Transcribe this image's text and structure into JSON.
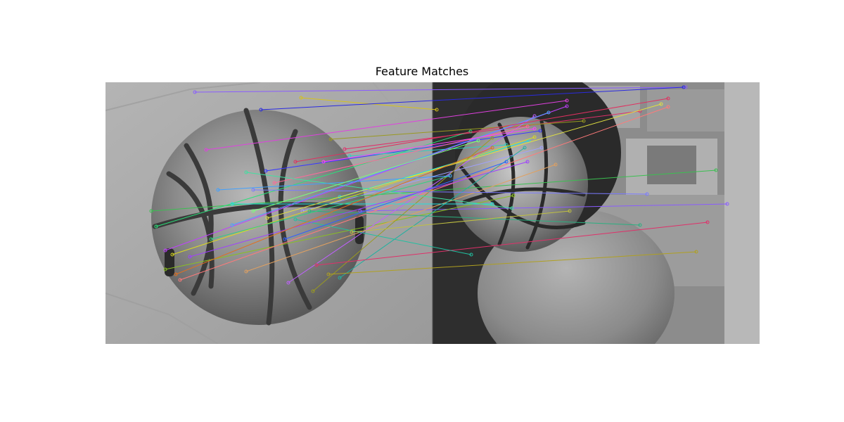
{
  "figure": {
    "title": "Feature Matches"
  },
  "images": {
    "left": {
      "subject": "basketball-on-pavement",
      "tone": "grayscale"
    },
    "right": {
      "subject": "basketball-on-stone-ball",
      "tone": "grayscale"
    }
  },
  "colors": {
    "background": "#ffffff",
    "title": "#000000"
  },
  "matches": [
    {
      "a": [
        277,
        131
      ],
      "b": [
        975,
        124
      ],
      "color": "#8a5cff"
    },
    {
      "a": [
        428,
        139
      ],
      "b": [
        621,
        156
      ],
      "color": "#d6c21a"
    },
    {
      "a": [
        371,
        156
      ],
      "b": [
        972,
        124
      ],
      "color": "#2a2ae0"
    },
    {
      "a": [
        293,
        213
      ],
      "b": [
        806,
        143
      ],
      "color": "#e040e0"
    },
    {
      "a": [
        378,
        243
      ],
      "b": [
        768,
        186
      ],
      "color": "#3a3aff"
    },
    {
      "a": [
        490,
        212
      ],
      "b": [
        910,
        158
      ],
      "color": "#e0306a"
    },
    {
      "a": [
        470,
        198
      ],
      "b": [
        830,
        172
      ],
      "color": "#9a9a20"
    },
    {
      "a": [
        497,
        222
      ],
      "b": [
        720,
        206
      ],
      "color": "#2ad0c0"
    },
    {
      "a": [
        483,
        280
      ],
      "b": [
        752,
        200
      ],
      "color": "#20e0e0"
    },
    {
      "a": [
        512,
        300
      ],
      "b": [
        1034,
        290
      ],
      "color": "#8a5cff"
    },
    {
      "a": [
        430,
        300
      ],
      "b": [
        770,
        210
      ],
      "color": "#a0a0ff"
    },
    {
      "a": [
        215,
        300
      ],
      "b": [
        1018,
        242
      ],
      "color": "#3ac050"
    },
    {
      "a": [
        222,
        322
      ],
      "b": [
        669,
        187
      ],
      "color": "#2ae07a"
    },
    {
      "a": [
        245,
        362
      ],
      "b": [
        760,
        195
      ],
      "color": "#dada20"
    },
    {
      "a": [
        235,
        356
      ],
      "b": [
        806,
        151
      ],
      "color": "#c040ff"
    },
    {
      "a": [
        235,
        383
      ],
      "b": [
        730,
        278
      ],
      "color": "#8ac020"
    },
    {
      "a": [
        256,
        398
      ],
      "b": [
        950,
        152
      ],
      "color": "#ff7a7a"
    },
    {
      "a": [
        350,
        386
      ],
      "b": [
        790,
        234
      ],
      "color": "#e0a060"
    },
    {
      "a": [
        410,
        402
      ],
      "b": [
        760,
        165
      ],
      "color": "#c060ff"
    },
    {
      "a": [
        445,
        414
      ],
      "b": [
        700,
        196
      ],
      "color": "#9a9a20"
    },
    {
      "a": [
        483,
        395
      ],
      "b": [
        746,
        210
      ],
      "color": "#20b0a0"
    },
    {
      "a": [
        467,
        390
      ],
      "b": [
        990,
        358
      ],
      "color": "#b0a020"
    },
    {
      "a": [
        450,
        377
      ],
      "b": [
        1006,
        316
      ],
      "color": "#e0306a"
    },
    {
      "a": [
        440,
        300
      ],
      "b": [
        910,
        320
      ],
      "color": "#2ab080"
    },
    {
      "a": [
        420,
        312
      ],
      "b": [
        670,
        362
      ],
      "color": "#20c0a0"
    },
    {
      "a": [
        360,
        270
      ],
      "b": [
        920,
        276
      ],
      "color": "#7a7aff"
    },
    {
      "a": [
        330,
        290
      ],
      "b": [
        700,
        290
      ],
      "color": "#20e0e0"
    },
    {
      "a": [
        390,
        260
      ],
      "b": [
        750,
        180
      ],
      "color": "#ff6a9a"
    },
    {
      "a": [
        300,
        340
      ],
      "b": [
        640,
        250
      ],
      "color": "#30d080"
    },
    {
      "a": [
        380,
        310
      ],
      "b": [
        940,
        148
      ],
      "color": "#e0e040"
    },
    {
      "a": [
        330,
        320
      ],
      "b": [
        780,
        160
      ],
      "color": "#50a0ff"
    },
    {
      "a": [
        350,
        245
      ],
      "b": [
        728,
        296
      ],
      "color": "#40e0a0"
    },
    {
      "a": [
        460,
        230
      ],
      "b": [
        760,
        183
      ],
      "color": "#ff40ff"
    },
    {
      "a": [
        500,
        330
      ],
      "b": [
        810,
        300
      ],
      "color": "#c0c040"
    },
    {
      "a": [
        405,
        340
      ],
      "b": [
        720,
        230
      ],
      "color": "#3060ff"
    },
    {
      "a": [
        270,
        365
      ],
      "b": [
        750,
        230
      ],
      "color": "#a040ff"
    },
    {
      "a": [
        250,
        390
      ],
      "b": [
        700,
        210
      ],
      "color": "#e07020"
    },
    {
      "a": [
        310,
        270
      ],
      "b": [
        640,
        250
      ],
      "color": "#40a0ff"
    },
    {
      "a": [
        420,
        230
      ],
      "b": [
        950,
        140
      ],
      "color": "#e03060"
    },
    {
      "a": [
        360,
        300
      ],
      "b": [
        680,
        200
      ],
      "color": "#7aff7a"
    }
  ]
}
